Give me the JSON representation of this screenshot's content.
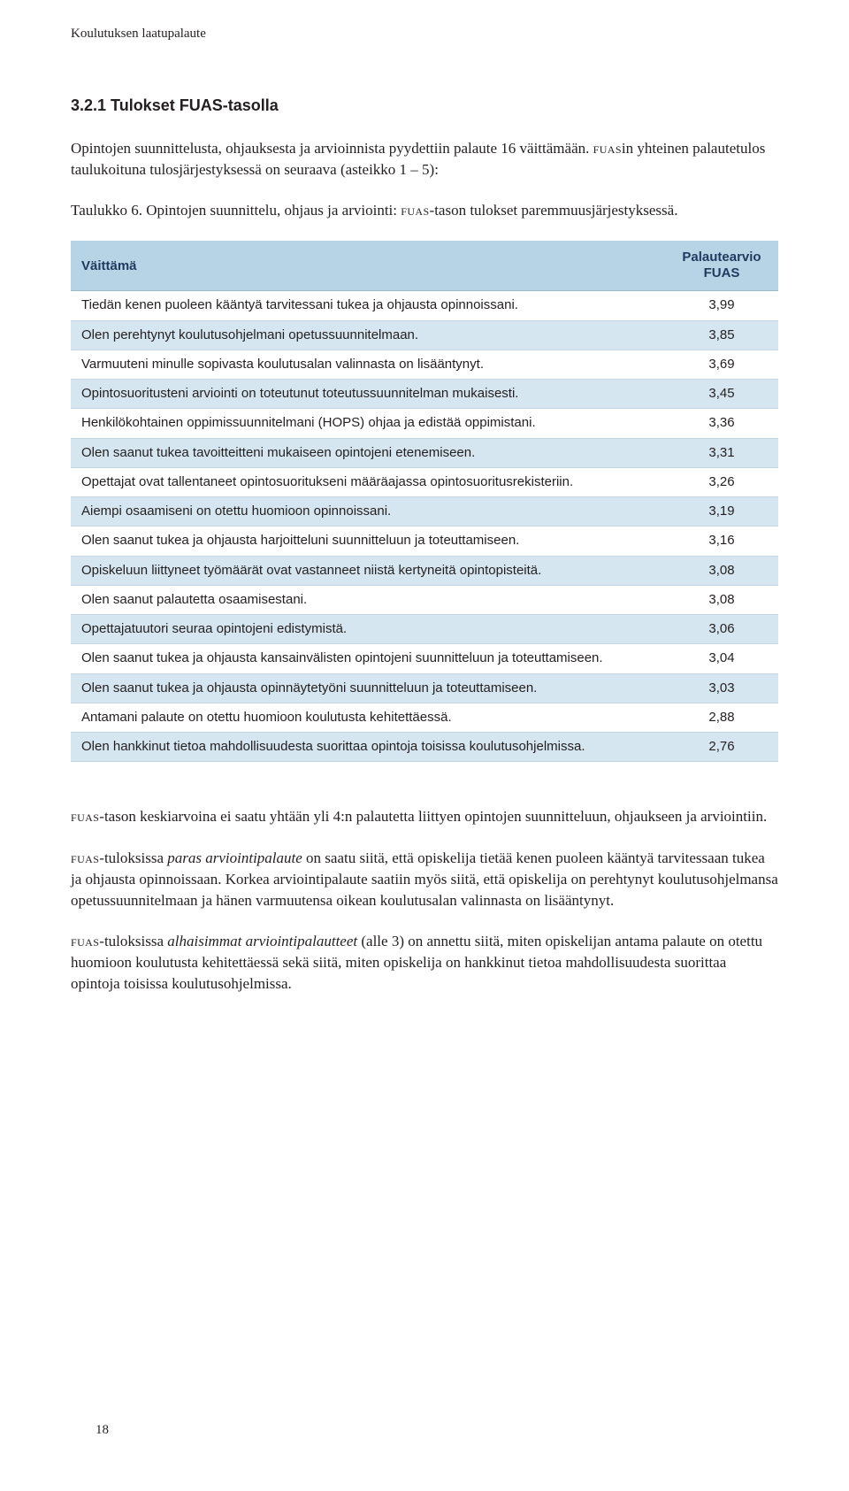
{
  "running_header": "Koulutuksen laatupalaute",
  "section_title": "3.2.1 Tulokset FUAS-tasolla",
  "intro_paras": {
    "p1_a": "Opintojen suunnittelusta, ohjauksesta ja arvioinnista pyydettiin palaute 16 väittämään. ",
    "p1_sc": "fuas",
    "p1_b": "in yhteinen palautetulos taulukoituna tulosjärjestyksessä on seuraava (asteikko 1 – 5):",
    "p2_a": "Taulukko 6. Opintojen suunnittelu, ohjaus ja arviointi: ",
    "p2_sc": "fuas",
    "p2_b": "-tason tulokset paremmuusjärjestyksessä."
  },
  "table": {
    "col_statement": "Väittämä",
    "col_value_l1": "Palautearvio",
    "col_value_l2": "FUAS",
    "rows": [
      {
        "s": "Tiedän kenen puoleen kääntyä tarvitessani tukea ja ohjausta opinnoissani.",
        "v": "3,99"
      },
      {
        "s": "Olen perehtynyt koulutusohjelmani opetussuunnitelmaan.",
        "v": "3,85"
      },
      {
        "s": "Varmuuteni minulle sopivasta koulutusalan valinnasta on lisääntynyt.",
        "v": "3,69"
      },
      {
        "s": "Opintosuoritusteni arviointi on toteutunut toteutussuunnitelman mukaisesti.",
        "v": "3,45"
      },
      {
        "s": "Henkilökohtainen oppimissuunnitelmani (HOPS) ohjaa ja edistää oppimistani.",
        "v": "3,36"
      },
      {
        "s": "Olen saanut tukea tavoitteitteni mukaiseen opintojeni etenemiseen.",
        "v": "3,31"
      },
      {
        "s": "Opettajat ovat tallentaneet opintosuoritukseni määräajassa opintosuoritusrekisteriin.",
        "v": "3,26"
      },
      {
        "s": "Aiempi osaamiseni on otettu huomioon opinnoissani.",
        "v": "3,19"
      },
      {
        "s": "Olen saanut tukea ja ohjausta harjoitteluni suunnitteluun ja toteuttamiseen.",
        "v": "3,16"
      },
      {
        "s": "Opiskeluun liittyneet työmäärät ovat vastanneet niistä kertyneitä opintopisteitä.",
        "v": "3,08"
      },
      {
        "s": "Olen saanut palautetta osaamisestani.",
        "v": "3,08"
      },
      {
        "s": "Opettajatuutori seuraa opintojeni edistymistä.",
        "v": "3,06"
      },
      {
        "s": "Olen saanut tukea ja ohjausta kansainvälisten opintojeni suunnitteluun ja toteuttamiseen.",
        "v": "3,04"
      },
      {
        "s": "Olen saanut tukea ja ohjausta opinnäytetyöni suunnitteluun ja toteuttamiseen.",
        "v": "3,03"
      },
      {
        "s": "Antamani palaute on otettu huomioon koulutusta kehitettäessä.",
        "v": "2,88"
      },
      {
        "s": "Olen hankkinut tietoa mahdollisuudesta suorittaa opintoja toisissa koulutusohjelmissa.",
        "v": "2,76"
      }
    ]
  },
  "concl": {
    "p1_sc": "fuas",
    "p1": "-tason keskiarvoina ei saatu yhtään yli 4:n palautetta liittyen opintojen suunnitteluun, ohjaukseen ja arviointiin.",
    "p2_sc": "fuas",
    "p2_a": "-tuloksissa ",
    "p2_em": "paras arviointipalaute",
    "p2_b": " on saatu siitä, että opiskelija tietää kenen puoleen kääntyä tarvitessaan tukea ja ohjausta opinnoissaan. Korkea arviointipalaute saatiin myös siitä, että opiskelija on perehtynyt koulutusohjelmansa opetussuunnitelmaan ja hänen varmuutensa oikean koulutusalan valinnasta on lisääntynyt.",
    "p3_sc": "fuas",
    "p3_a": "-tuloksissa ",
    "p3_em": "alhaisimmat arviointipalautteet",
    "p3_b": " (alle 3) on annettu siitä, miten opiskelijan antama palaute on otettu huomioon koulutusta kehitettäessä sekä siitä, miten opiskelija on hankkinut tietoa mahdollisuudesta suorittaa opintoja toisissa koulutusohjelmissa."
  },
  "page_number": "18",
  "colors": {
    "header_bg": "#b7d4e6",
    "row_alt_bg": "#d6e6f0",
    "header_text": "#1f3a5f",
    "body_text": "#231f20",
    "border": "#c4d6e2"
  }
}
